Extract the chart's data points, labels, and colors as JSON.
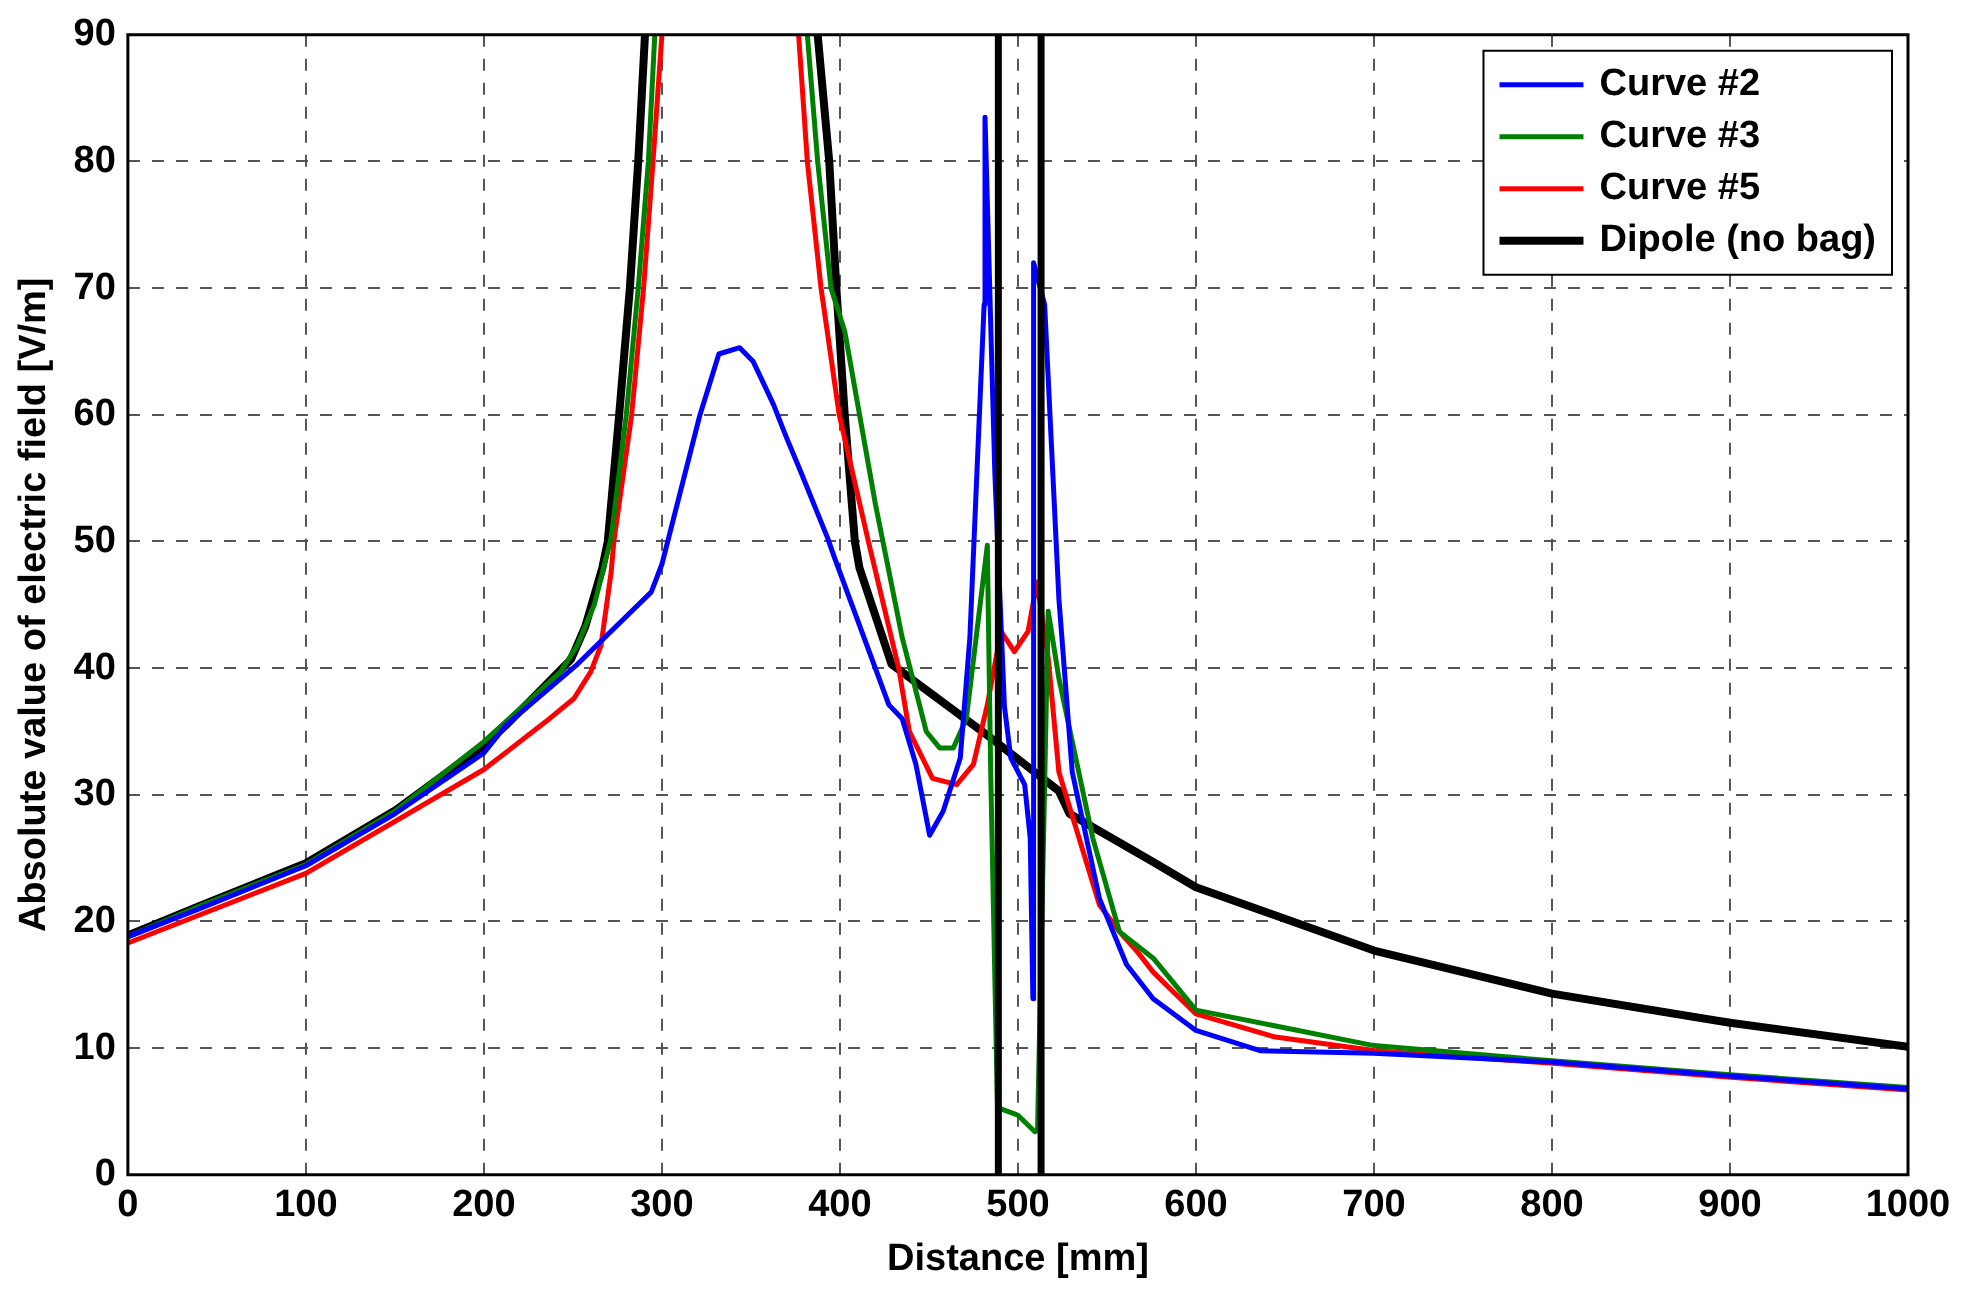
{
  "chart_data": {
    "type": "line",
    "xlabel": "Distance [mm]",
    "ylabel": "Absolute value of electric field [V/m]",
    "xlim": [
      0,
      1000
    ],
    "xticks": [
      0,
      100,
      200,
      300,
      400,
      500,
      600,
      700,
      800,
      900,
      1000
    ],
    "ylim": [
      0,
      90
    ],
    "yticks": [
      0,
      10,
      20,
      30,
      40,
      50,
      60,
      70,
      80,
      90
    ],
    "grid": true,
    "legend": "top right",
    "line_style": "solid",
    "marker": "none",
    "series": [
      {
        "name": "Curve #2",
        "color": "#0000ff",
        "x": [
          0,
          40,
          100,
          150,
          200,
          212.5,
          252.5,
          294,
          300,
          321,
          332,
          343.7,
          351.3,
          362.7,
          370,
          378,
          393,
          397,
          427.5,
          435,
          442.7,
          450.4,
          458,
          467.6,
          473,
          481,
          481.5,
          487,
          492.4,
          496,
          503.8,
          506.9,
          508.4,
          508.8,
          515,
          523,
          530.5,
          545.8,
          561,
          576,
          600,
          636,
          700,
          800,
          900,
          1000
        ],
        "values": [
          18.8,
          21,
          24.4,
          28.5,
          33.3,
          35.5,
          40.3,
          46,
          48.2,
          59.8,
          64.8,
          65.3,
          64.2,
          60.8,
          58.2,
          55.5,
          50.3,
          48.7,
          37.1,
          36,
          32.4,
          26.8,
          28.7,
          32.9,
          42.4,
          68.7,
          83.5,
          55.5,
          37,
          32.9,
          30.8,
          26.6,
          13.9,
          72,
          68.7,
          45.5,
          31.8,
          21.8,
          16.6,
          13.9,
          11.4,
          9.8,
          9.6,
          8.9,
          7.8,
          6.8
        ]
      },
      {
        "name": "Curve #3",
        "color": "#008000",
        "x": [
          0,
          40,
          100,
          150,
          200,
          243,
          252.5,
          262,
          271.5,
          280,
          286.7,
          292.4,
          296,
          340,
          381.7,
          387.5,
          395,
          402.7,
          420,
          435,
          448.5,
          456,
          463.7,
          471,
          482.8,
          484.7,
          488.5,
          500,
          509.5,
          511,
          517,
          523,
          542,
          557,
          576,
          600,
          700,
          800,
          900,
          1000
        ],
        "values": [
          18.8,
          21.2,
          24.5,
          28.7,
          34.2,
          39.7,
          41.8,
          45,
          50.3,
          60,
          70,
          80,
          90,
          null,
          90,
          80,
          70,
          66.6,
          52.9,
          42.4,
          35,
          33.7,
          33.7,
          36,
          49.7,
          31.8,
          5.3,
          4.7,
          3.4,
          3.5,
          44.5,
          39.2,
          26.6,
          19.2,
          17.1,
          13,
          10.2,
          9,
          7.9,
          6.9
        ]
      },
      {
        "name": "Curve #5",
        "color": "#ff0000",
        "x": [
          0,
          100,
          200,
          235,
          250.6,
          260,
          265.8,
          271.5,
          273,
          283,
          289.7,
          295,
          300,
          340,
          376.8,
          381.7,
          389.4,
          399.6,
          416,
          433,
          439,
          452,
          465.6,
          475,
          482.8,
          490.5,
          498,
          505.7,
          510.7,
          517,
          523,
          545.8,
          557,
          567.7,
          576,
          600,
          643.7,
          700.8,
          800.4,
          900.4,
          1000
        ],
        "values": [
          18.3,
          23.8,
          32,
          35.8,
          37.6,
          39.7,
          41.8,
          47.6,
          50,
          60,
          70,
          80,
          90,
          null,
          90,
          80,
          70,
          60,
          50,
          40,
          35,
          31.3,
          30.8,
          32.4,
          37.1,
          42.9,
          41.3,
          42.9,
          46.8,
          40.8,
          31.8,
          21.3,
          19.2,
          17.5,
          16,
          12.7,
          10.9,
          9.8,
          8.8,
          7.7,
          6.7
        ]
      },
      {
        "name": "Dipole (no bag)",
        "color": "#000000",
        "x": [
          0,
          40,
          100,
          150.6,
          200,
          212.5,
          249,
          257,
          266.5,
          269.6,
          276,
          282,
          286.7,
          290.5,
          340,
          387.5,
          394,
          398,
          402.7,
          408.4,
          411,
          429,
          484.7,
          523,
          529,
          576,
          600,
          700,
          800,
          900,
          1000
        ],
        "values": [
          18.9,
          21.2,
          24.6,
          28.8,
          33.9,
          35.5,
          40.7,
          43.3,
          47.9,
          50,
          60,
          70,
          80,
          90,
          null,
          90,
          80,
          70,
          60,
          50,
          47.9,
          40.3,
          34.5,
          30.3,
          28.5,
          24.7,
          22.7,
          17.7,
          14.3,
          12,
          10.1
        ]
      }
    ],
    "ref_lines": [
      {
        "axis": "x",
        "value": 489,
        "color": "#000000",
        "line_style": "solid"
      },
      {
        "axis": "x",
        "value": 513,
        "color": "#000000",
        "line_style": "solid"
      }
    ]
  }
}
